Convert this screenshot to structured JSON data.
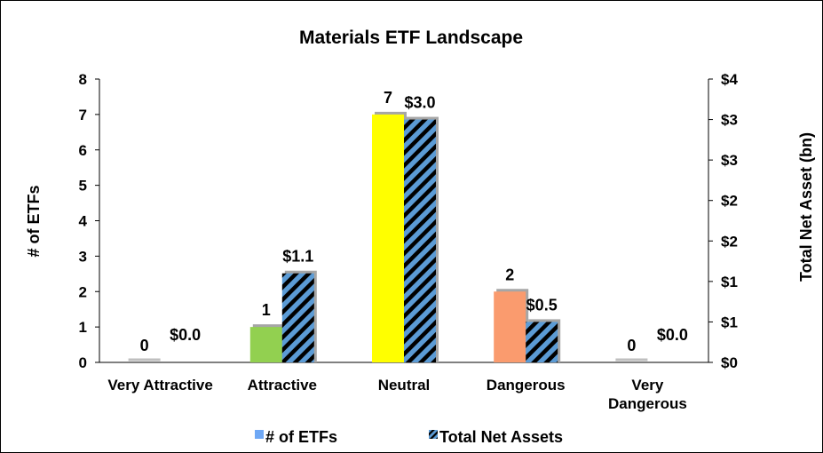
{
  "chart_data": {
    "type": "bar",
    "title": "Materials ETF Landscape",
    "categories": [
      "Very Attractive",
      "Attractive",
      "Neutral",
      "Dangerous",
      "Very Dangerous"
    ],
    "category_lines": [
      [
        "Very Attractive"
      ],
      [
        "Attractive"
      ],
      [
        "Neutral"
      ],
      [
        "Dangerous"
      ],
      [
        "Very",
        "Dangerous"
      ]
    ],
    "category_colors": [
      "#bfbfbf",
      "#92d050",
      "#ffff00",
      "#fa9b6e",
      "#bfbfbf"
    ],
    "ylabel_left": "# of ETFs",
    "ylabel_right": "Total Net Asset (bn)",
    "ylim_left": [
      0,
      8
    ],
    "ylim_right": [
      0,
      3.5
    ],
    "yticks_left": [
      "0",
      "1",
      "2",
      "3",
      "4",
      "5",
      "6",
      "7",
      "8"
    ],
    "yticks_right": [
      "$0",
      "$1",
      "$1",
      "$2",
      "$2",
      "$3",
      "$3",
      "$4"
    ],
    "grid": false,
    "legend_position": "bottom",
    "series": [
      {
        "name": "# of ETFs",
        "axis": "left",
        "values": [
          0,
          1,
          7,
          2,
          0
        ],
        "data_labels": [
          "0",
          "1",
          "7",
          "2",
          "0"
        ],
        "legend_color": "#6fa8f5"
      },
      {
        "name": "Total Net Assets",
        "axis": "right",
        "values": [
          0.0,
          1.1,
          3.0,
          0.5,
          0.0
        ],
        "data_labels": [
          "$0.0",
          "$1.1",
          "$3.0",
          "$0.5",
          "$0.0"
        ],
        "fill": "#5b9bd5",
        "stripe_color": "#000000"
      }
    ]
  }
}
